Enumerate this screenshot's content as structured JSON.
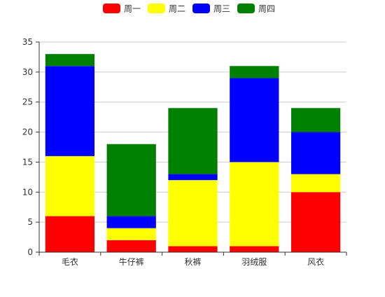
{
  "chart_data": {
    "type": "bar",
    "stacked": true,
    "categories": [
      "毛衣",
      "牛仔裤",
      "秋裤",
      "羽绒服",
      "风衣"
    ],
    "series": [
      {
        "name": "周一",
        "color": "#ff0000",
        "values": [
          6,
          2,
          1,
          1,
          10
        ]
      },
      {
        "name": "周二",
        "color": "#ffff00",
        "values": [
          10,
          2,
          11,
          14,
          3
        ]
      },
      {
        "name": "周三",
        "color": "#0000ff",
        "values": [
          15,
          2,
          1,
          14,
          7
        ]
      },
      {
        "name": "周四",
        "color": "#008000",
        "values": [
          2,
          12,
          11,
          2,
          4
        ]
      }
    ],
    "ylim": [
      0,
      35
    ],
    "yticks": [
      0,
      5,
      10,
      15,
      20,
      25,
      30,
      35
    ],
    "grid": true,
    "legend": "top-center"
  }
}
